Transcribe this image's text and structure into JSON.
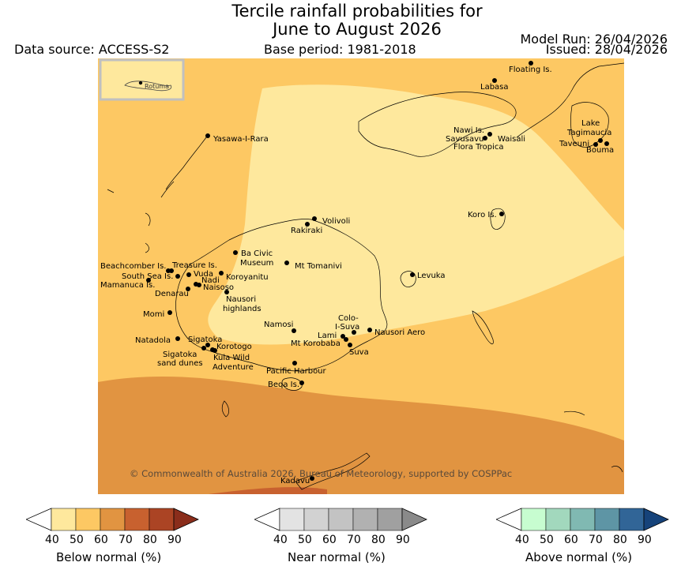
{
  "title_line1": "Tercile rainfall probabilities for",
  "title_line2": "June to August 2026",
  "data_source": "Data source: ACCESS-S2",
  "base_period": "Base period: 1981-2018",
  "model_run": "Model Run: 26/04/2026",
  "issued": "Issued: 28/04/2026",
  "inset_label": "Rotuma",
  "credit": "© Commonwealth of Australia 2026, Bureau of Meteorology, supported by COSPPac",
  "places": [
    {
      "name": "Floating Is."
    },
    {
      "name": "Labasa"
    },
    {
      "name": "Yasawa-I-Rara"
    },
    {
      "name": "Nawi Is."
    },
    {
      "name": "Savusavu"
    },
    {
      "name": "Waisali"
    },
    {
      "name": "Flora Tropica"
    },
    {
      "name": "Lake"
    },
    {
      "name": "Tagimaucia"
    },
    {
      "name": "Taveuni"
    },
    {
      "name": "Bouma"
    },
    {
      "name": "Koro Is."
    },
    {
      "name": "Volivoli"
    },
    {
      "name": "Rakiraki"
    },
    {
      "name": "Ba Civic"
    },
    {
      "name": "Museum"
    },
    {
      "name": "Mt Tomanivi"
    },
    {
      "name": "Beachcomber Is."
    },
    {
      "name": "Treasure Is."
    },
    {
      "name": "South Sea Is."
    },
    {
      "name": "Vuda"
    },
    {
      "name": "Koroyanitu"
    },
    {
      "name": "Mamanuca Is."
    },
    {
      "name": "Nadi"
    },
    {
      "name": "Naisoso"
    },
    {
      "name": "Denarau"
    },
    {
      "name": "Levuka"
    },
    {
      "name": "Nausori"
    },
    {
      "name": "highlands"
    },
    {
      "name": "Momi"
    },
    {
      "name": "Colo-"
    },
    {
      "name": "I-Suva"
    },
    {
      "name": "Namosi"
    },
    {
      "name": "Lami"
    },
    {
      "name": "Nausori Aero"
    },
    {
      "name": "Mt Korobaba"
    },
    {
      "name": "Suva"
    },
    {
      "name": "Natadola"
    },
    {
      "name": "Sigatoka"
    },
    {
      "name": "Korotogo"
    },
    {
      "name": "sand dunes"
    },
    {
      "name": "Kula Wild"
    },
    {
      "name": "Adventure"
    },
    {
      "name": "Pacific Harbour"
    },
    {
      "name": "Beqa Is."
    },
    {
      "name": "Kadavu"
    }
  ],
  "colorbars": [
    {
      "title": "Below normal (%)",
      "ticks": [
        "40",
        "50",
        "60",
        "70",
        "80",
        "90"
      ],
      "colors": [
        "#fee89d",
        "#fdc863",
        "#e19441",
        "#c8612f",
        "#ab4424",
        "#8a2d1b"
      ]
    },
    {
      "title": "Near normal (%)",
      "ticks": [
        "40",
        "50",
        "60",
        "70",
        "80",
        "90"
      ],
      "colors": [
        "#e3e3e3",
        "#d2d2d2",
        "#c3c3c3",
        "#b1b1b1",
        "#a0a0a0",
        "#8a8a8a"
      ]
    },
    {
      "title": "Above normal (%)",
      "ticks": [
        "40",
        "50",
        "60",
        "70",
        "80",
        "90"
      ],
      "colors": [
        "#c7fdd0",
        "#a2d8bd",
        "#80b9b2",
        "#5e95a5",
        "#316597",
        "#16437a"
      ]
    }
  ]
}
